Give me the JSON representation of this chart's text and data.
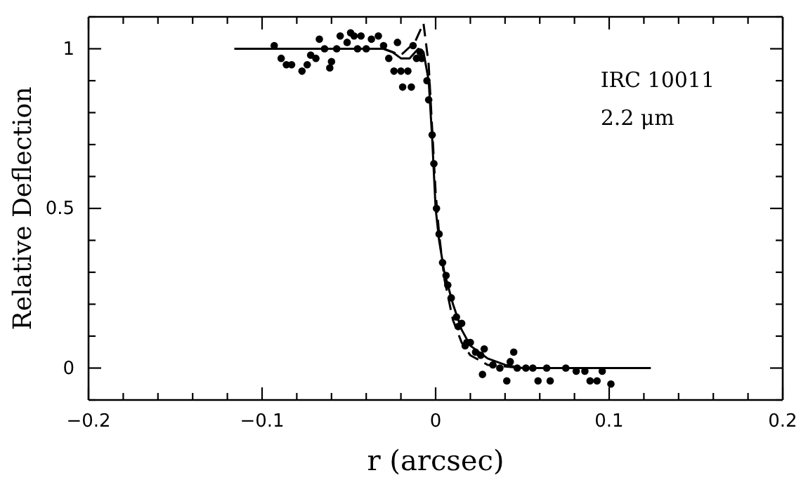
{
  "chart_data": {
    "type": "scatter",
    "xlabel": "r (arcsec)",
    "ylabel": "Relative Deflection",
    "xlim": [
      -0.2,
      0.2
    ],
    "ylim": [
      -0.1,
      1.1
    ],
    "xticks": [
      -0.2,
      {
        "value": -0.18,
        "label": null
      },
      {
        "value": -0.16,
        "label": null
      },
      {
        "value": -0.14,
        "label": null
      },
      {
        "value": -0.12,
        "label": null
      },
      -0.1,
      {
        "value": -0.08,
        "label": null
      },
      {
        "value": -0.06,
        "label": null
      },
      {
        "value": -0.04,
        "label": null
      },
      {
        "value": -0.02,
        "label": null
      },
      0,
      {
        "value": 0.02,
        "label": null
      },
      {
        "value": 0.04,
        "label": null
      },
      {
        "value": 0.06,
        "label": null
      },
      {
        "value": 0.08,
        "label": null
      },
      0.1,
      {
        "value": 0.12,
        "label": null
      },
      {
        "value": 0.14,
        "label": null
      },
      {
        "value": 0.16,
        "label": null
      },
      {
        "value": 0.18,
        "label": null
      },
      0.2
    ],
    "yticks": [
      {
        "value": -0.1,
        "label": null
      },
      0,
      {
        "value": 0.1,
        "label": null
      },
      {
        "value": 0.2,
        "label": null
      },
      {
        "value": 0.3,
        "label": null
      },
      {
        "value": 0.4,
        "label": null
      },
      0.5,
      {
        "value": 0.6,
        "label": null
      },
      {
        "value": 0.7,
        "label": null
      },
      {
        "value": 0.8,
        "label": null
      },
      {
        "value": 0.9,
        "label": null
      },
      1,
      {
        "value": 1.1,
        "label": null
      }
    ],
    "grid": false,
    "annotations": [
      "IRC 10011",
      "2.2 μm"
    ],
    "series": [
      {
        "marker": "circle",
        "color": "#000000",
        "x": [
          -0.093,
          -0.089,
          -0.086,
          -0.083,
          -0.077,
          -0.074,
          -0.072,
          -0.069,
          -0.067,
          -0.064,
          -0.061,
          -0.06,
          -0.057,
          -0.055,
          -0.051,
          -0.049,
          -0.047,
          -0.045,
          -0.043,
          -0.04,
          -0.037,
          -0.033,
          -0.03,
          -0.027,
          -0.024,
          -0.022,
          -0.02,
          -0.019,
          -0.016,
          -0.014,
          -0.013,
          -0.011,
          -0.009,
          -0.008,
          -0.005,
          -0.004,
          -0.002,
          -0.001,
          0.0005,
          0.002,
          0.004,
          0.006,
          0.007,
          0.009,
          0.012,
          0.013,
          0.015,
          0.017,
          0.018,
          0.02,
          0.023,
          0.026,
          0.027,
          0.028,
          0.033,
          0.037,
          0.041,
          0.043,
          0.045,
          0.047,
          0.052,
          0.056,
          0.059,
          0.064,
          0.066,
          0.075,
          0.081,
          0.086,
          0.089,
          0.093,
          0.096,
          0.101
        ],
        "values": [
          1.01,
          0.97,
          0.95,
          0.95,
          0.93,
          0.95,
          0.98,
          0.97,
          1.03,
          1.0,
          0.94,
          0.96,
          1.0,
          1.04,
          1.02,
          1.05,
          1.04,
          1.0,
          1.04,
          1.0,
          1.03,
          1.04,
          1.01,
          0.97,
          0.93,
          1.02,
          0.93,
          0.88,
          0.93,
          0.88,
          1.01,
          0.97,
          0.99,
          0.97,
          0.9,
          0.84,
          0.73,
          0.64,
          0.5,
          0.42,
          0.33,
          0.29,
          0.26,
          0.22,
          0.16,
          0.13,
          0.14,
          0.07,
          0.08,
          0.08,
          0.05,
          0.04,
          -0.02,
          0.06,
          0.01,
          0.0,
          -0.04,
          0.02,
          0.05,
          0.0,
          0.0,
          0.0,
          -0.04,
          0.0,
          -0.04,
          0.0,
          -0.01,
          -0.01,
          -0.04,
          -0.04,
          -0.01,
          -0.05
        ]
      },
      {
        "type": "line",
        "line_style": "solid",
        "marker": "none",
        "color": "#000000",
        "x": [
          -0.116,
          -0.03,
          -0.025,
          -0.02,
          -0.015,
          -0.01,
          -0.007,
          -0.004,
          -0.002,
          0,
          0.002,
          0.005,
          0.01,
          0.015,
          0.02,
          0.03,
          0.04,
          0.05,
          0.124
        ],
        "values": [
          1.0,
          1.0,
          0.99,
          0.97,
          0.97,
          1.0,
          0.99,
          0.9,
          0.72,
          0.5,
          0.4,
          0.3,
          0.2,
          0.12,
          0.07,
          0.03,
          0.01,
          0.0,
          0.0
        ]
      },
      {
        "type": "line",
        "line_style": "dashed",
        "marker": "none",
        "color": "#000000",
        "x": [
          -0.03,
          -0.02,
          -0.012,
          -0.007,
          -0.004,
          -0.002,
          0,
          0.002,
          0.005,
          0.01,
          0.015,
          0.02,
          0.03,
          0.05
        ],
        "values": [
          1.0,
          0.98,
          1.02,
          1.08,
          0.95,
          0.75,
          0.55,
          0.42,
          0.28,
          0.15,
          0.08,
          0.04,
          0.01,
          0.0
        ]
      }
    ]
  }
}
